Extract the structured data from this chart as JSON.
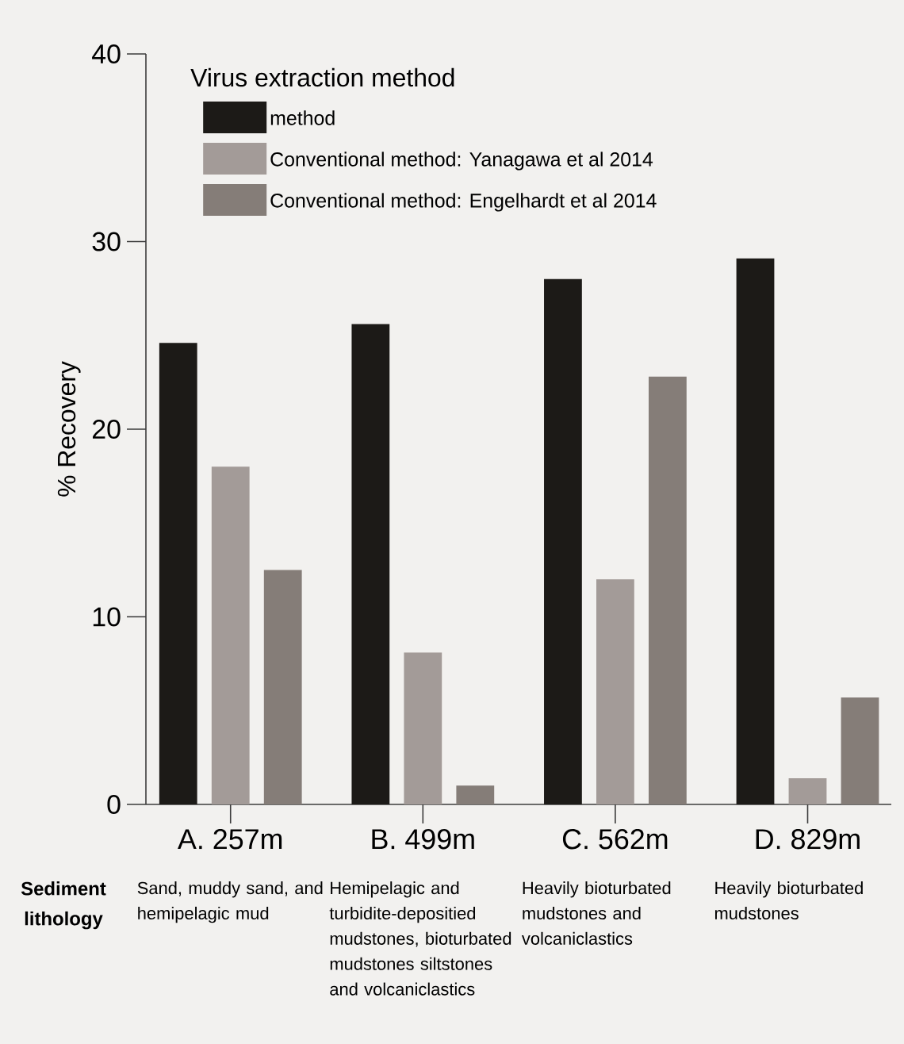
{
  "chart_data": {
    "type": "bar",
    "ylabel": "% Recovery",
    "legend_title": "Virus extraction method",
    "legend": "top left",
    "categories": [
      "A. 257m",
      "B. 499m",
      "C. 562m",
      "D. 829m"
    ],
    "series": [
      {
        "name": "method",
        "color": "#1c1a17",
        "values": [
          24.6,
          25.6,
          28.0,
          29.1
        ]
      },
      {
        "name": "Conventional method: Yanagawa et al 2014",
        "color": "#a39b98",
        "values": [
          18.0,
          8.1,
          12.0,
          1.4
        ]
      },
      {
        "name": "Conventional method: Engelhardt et al 2014",
        "color": "#857d78",
        "values": [
          12.5,
          1.0,
          22.8,
          5.7
        ]
      }
    ],
    "ylim": [
      0,
      40
    ],
    "yticks": [
      0,
      10,
      20,
      30,
      40
    ],
    "annotations": [
      "Sediment lithology",
      "Sand, muddy sand, and hemipelagic mud",
      "Hemipelagic and turbidite-depositied mudstones, bioturbated mudstones siltstones and volcaniclastics",
      "Heavily bioturbated mudstones and volcaniclastics",
      "Heavily bioturbated mudstones"
    ]
  }
}
